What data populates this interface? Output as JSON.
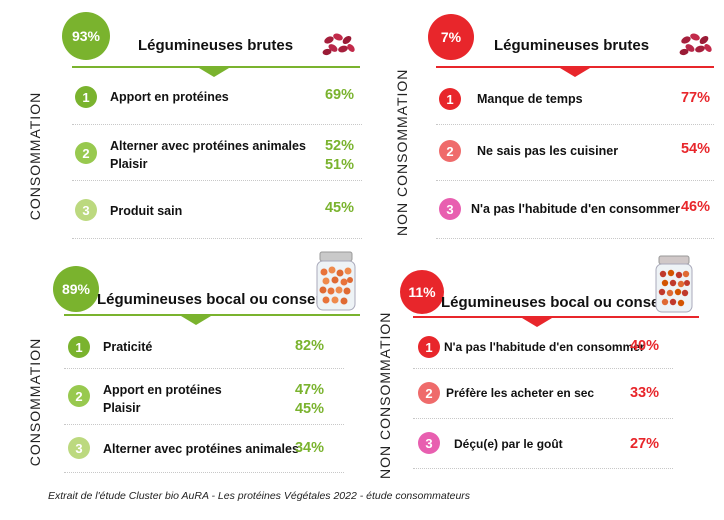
{
  "chart_data": [
    {
      "type": "table",
      "title": "Légumineuses brutes",
      "group": "CONSOMMATION",
      "share": "93%",
      "color": "#7ab32e",
      "items": [
        {
          "rank": "1",
          "labels": [
            "Apport en protéines"
          ],
          "values": [
            "69%"
          ],
          "badge_color": "#7ab32e"
        },
        {
          "rank": "2",
          "labels": [
            "Alterner avec protéines animales",
            "Plaisir"
          ],
          "values": [
            "52%",
            "51%"
          ],
          "badge_color": "#98c94f"
        },
        {
          "rank": "3",
          "labels": [
            "Produit sain"
          ],
          "values": [
            "45%"
          ],
          "badge_color": "#bcd97f"
        }
      ]
    },
    {
      "type": "table",
      "title": "Légumineuses brutes",
      "group": "NON CONSOMMATION",
      "share": "7%",
      "color": "#e8262b",
      "items": [
        {
          "rank": "1",
          "labels": [
            "Manque de temps"
          ],
          "values": [
            "77%"
          ],
          "badge_color": "#e8262b"
        },
        {
          "rank": "2",
          "labels": [
            "Ne sais pas les cuisiner"
          ],
          "values": [
            "54%"
          ],
          "badge_color": "#ef6b6b"
        },
        {
          "rank": "3",
          "labels": [
            "N'a pas l'habitude d'en consommer"
          ],
          "values": [
            "46%"
          ],
          "badge_color": "#e85fb0"
        }
      ]
    },
    {
      "type": "table",
      "title": "Légumineuses bocal ou conserve",
      "group": "CONSOMMATION",
      "share": "89%",
      "color": "#7ab32e",
      "items": [
        {
          "rank": "1",
          "labels": [
            "Praticité"
          ],
          "values": [
            "82%"
          ],
          "badge_color": "#7ab32e"
        },
        {
          "rank": "2",
          "labels": [
            "Apport en protéines",
            "Plaisir"
          ],
          "values": [
            "47%",
            "45%"
          ],
          "badge_color": "#98c94f"
        },
        {
          "rank": "3",
          "labels": [
            "Alterner avec protéines animales"
          ],
          "values": [
            "34%"
          ],
          "badge_color": "#bcd97f"
        }
      ]
    },
    {
      "type": "table",
      "title": "Légumineuses bocal ou conserve",
      "group": "NON CONSOMMATION",
      "share": "11%",
      "color": "#e8262b",
      "items": [
        {
          "rank": "1",
          "labels": [
            "N'a pas l'habitude d'en consommer"
          ],
          "values": [
            "40%"
          ],
          "badge_color": "#e8262b"
        },
        {
          "rank": "2",
          "labels": [
            "Préfère les acheter en sec"
          ],
          "values": [
            "33%"
          ],
          "badge_color": "#ef6b6b"
        },
        {
          "rank": "3",
          "labels": [
            "Déçu(e) par le goût"
          ],
          "values": [
            "27%"
          ],
          "badge_color": "#e85fb0"
        }
      ]
    }
  ],
  "footer": "Extrait de l'étude Cluster bio AuRA - Les protéines Végétales 2022 - étude consommateurs"
}
